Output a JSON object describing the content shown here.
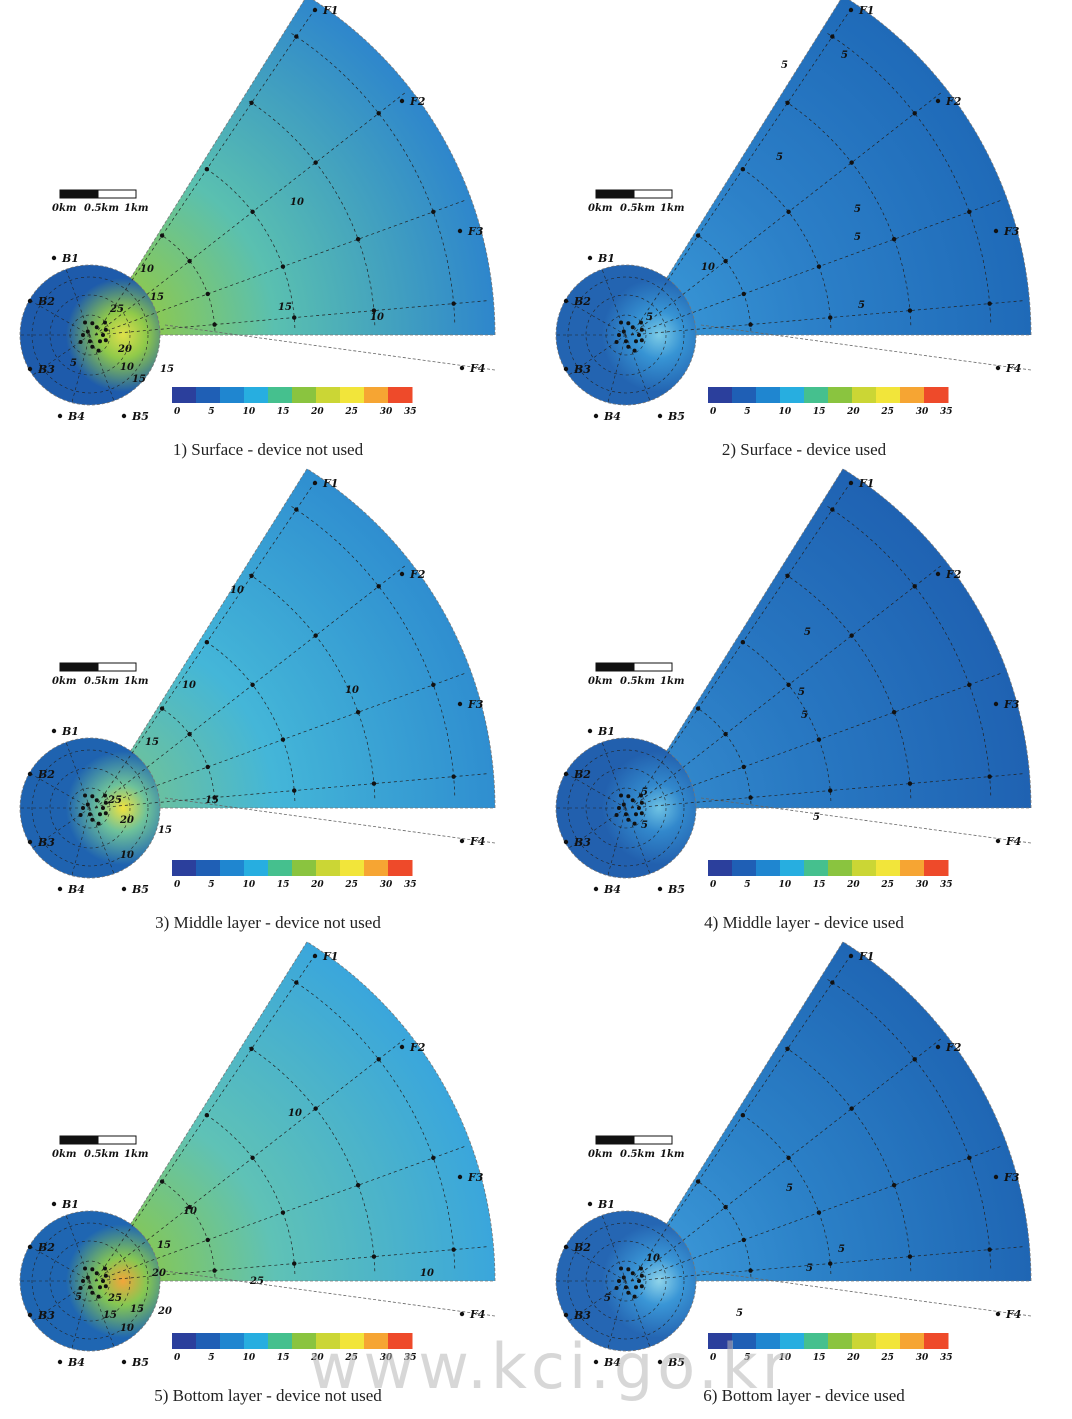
{
  "figure": {
    "scale_bar": {
      "labels": [
        "0km",
        "0.5km",
        "1km"
      ]
    },
    "station_labels": [
      "F1",
      "F2",
      "F3",
      "F4",
      "B1",
      "B2",
      "B3",
      "B4",
      "B5"
    ],
    "colorbar": {
      "ticks": [
        "0",
        "5",
        "10",
        "15",
        "20",
        "25",
        "30",
        "35"
      ],
      "colors": [
        "#2b3f9c",
        "#1f5fb5",
        "#1f86d0",
        "#27aee0",
        "#45c08e",
        "#8ac43f",
        "#cbd635",
        "#f2e53a",
        "#f6a533",
        "#ee4a2a"
      ]
    },
    "watermark": "www.kci.go.kr"
  },
  "panels": [
    {
      "caption": "1) Surface - device not used",
      "field": {
        "far": "#2e86cc",
        "mid": "#5ac0b0",
        "core": "#8fc94a",
        "hot": "#dfe04a",
        "basin": "#1e5bab"
      },
      "contours": [
        "10",
        "15",
        "15",
        "10",
        "10",
        "15",
        "20",
        "10",
        "5",
        "15",
        "25"
      ]
    },
    {
      "caption": "2) Surface - device used",
      "field": {
        "far": "#1f6ab8",
        "mid": "#2c80c8",
        "core": "#3794d4",
        "hot": "#7ccbe6",
        "basin": "#2364b1"
      },
      "contours": [
        "5",
        "5",
        "5",
        "5",
        "5",
        "5",
        "5",
        "10"
      ]
    },
    {
      "caption": "3) Middle layer - device not used",
      "field": {
        "far": "#2f8ed0",
        "mid": "#44b6d8",
        "core": "#6ec29a",
        "hot": "#f0e23e",
        "basin": "#1f63b0"
      },
      "contours": [
        "10",
        "10",
        "10",
        "15",
        "15",
        "15",
        "20",
        "25",
        "10"
      ]
    },
    {
      "caption": "4) Middle layer - device used",
      "field": {
        "far": "#1f62b2",
        "mid": "#2878c2",
        "core": "#3288cc",
        "hot": "#6fc3e4",
        "basin": "#2260ae"
      },
      "contours": [
        "5",
        "5",
        "5",
        "5",
        "5",
        "5"
      ]
    },
    {
      "caption": "5) Bottom layer - device not used",
      "field": {
        "far": "#3aa6dc",
        "mid": "#5fc2b6",
        "core": "#86c752",
        "hot": "#f2a63a",
        "basin": "#1f66b2"
      },
      "contours": [
        "10",
        "10",
        "10",
        "15",
        "20",
        "25",
        "15",
        "20",
        "25",
        "10",
        "15",
        "5"
      ]
    },
    {
      "caption": "6) Bottom layer - device used",
      "field": {
        "far": "#1f66b4",
        "mid": "#2c82c8",
        "core": "#3a96d6",
        "hot": "#8fd4ea",
        "basin": "#2566b3"
      },
      "contours": [
        "5",
        "5",
        "5",
        "5",
        "5",
        "10"
      ]
    }
  ]
}
